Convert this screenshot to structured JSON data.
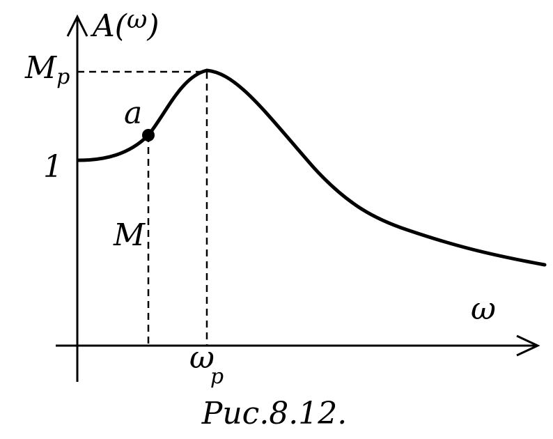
{
  "diagram": {
    "y_axis_label": "A(ω)",
    "y_axis_label_main": "A(",
    "y_axis_label_arg": "ω",
    "y_axis_label_close": ")",
    "x_axis_label": "ω",
    "peak_value_label": "M",
    "peak_value_sub": "p",
    "unity_label": "1",
    "point_label": "a",
    "point_value_label": "M",
    "peak_freq_label": "ω",
    "peak_freq_sub": "p",
    "caption": "Рис.8.12."
  }
}
